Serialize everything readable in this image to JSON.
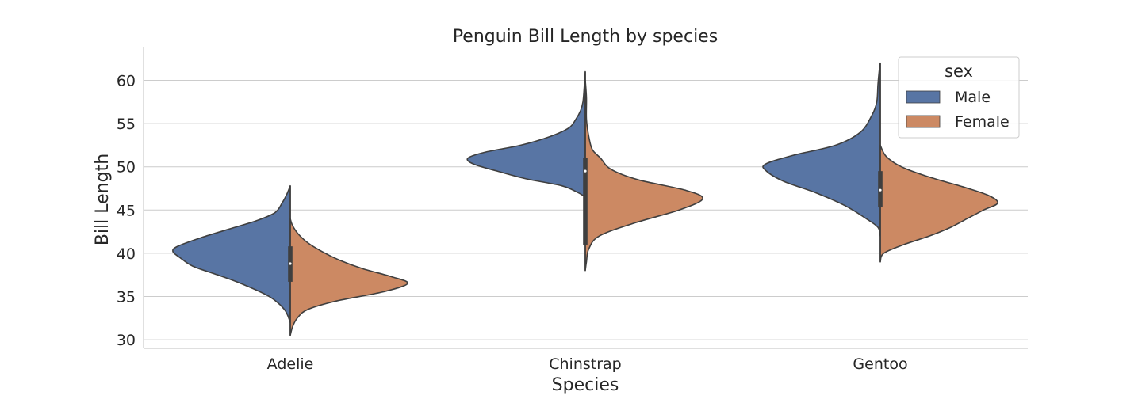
{
  "chart_data": {
    "type": "violin",
    "title": "Penguin Bill Length by species",
    "xlabel": "Species",
    "ylabel": "Bill Length",
    "categories": [
      "Adelie",
      "Chinstrap",
      "Gentoo"
    ],
    "ylim": [
      29,
      63.8
    ],
    "yticks": [
      30,
      35,
      40,
      45,
      50,
      55,
      60
    ],
    "grid": "horizontal",
    "split": true,
    "legend": {
      "title": "sex",
      "placement": "top-right"
    },
    "series": [
      {
        "name": "Male",
        "color": "#5875a4",
        "side": "left",
        "violins": [
          {
            "category": "Adelie",
            "quartiles": [
              36.7,
              38.8,
              40.8
            ],
            "median": 38.8,
            "range": [
              32.0,
              47.8
            ],
            "profile": [
              [
                32.0,
                0
              ],
              [
                33.5,
                0.05
              ],
              [
                35.0,
                0.18
              ],
              [
                36.5,
                0.42
              ],
              [
                37.5,
                0.62
              ],
              [
                38.5,
                0.83
              ],
              [
                39.5,
                0.94
              ],
              [
                40.2,
                1.0
              ],
              [
                40.8,
                0.96
              ],
              [
                41.8,
                0.76
              ],
              [
                42.8,
                0.52
              ],
              [
                43.8,
                0.28
              ],
              [
                44.7,
                0.13
              ],
              [
                45.8,
                0.07
              ],
              [
                46.8,
                0.03
              ],
              [
                47.8,
                0
              ]
            ]
          },
          {
            "category": "Chinstrap",
            "quartiles": [
              46.5,
              49.5,
              51.0
            ],
            "median": 49.5,
            "range": [
              46.5,
              61.0
            ],
            "profile": [
              [
                46.5,
                0
              ],
              [
                47.0,
                0.06
              ],
              [
                47.8,
                0.2
              ],
              [
                48.6,
                0.5
              ],
              [
                49.5,
                0.75
              ],
              [
                50.3,
                0.95
              ],
              [
                51.0,
                1.0
              ],
              [
                51.7,
                0.85
              ],
              [
                52.5,
                0.55
              ],
              [
                53.5,
                0.3
              ],
              [
                54.5,
                0.14
              ],
              [
                55.5,
                0.08
              ],
              [
                56.5,
                0.04
              ],
              [
                57.5,
                0.02
              ],
              [
                59.0,
                0.01
              ],
              [
                61.0,
                0
              ]
            ]
          },
          {
            "category": "Gentoo",
            "quartiles": [
              45.5,
              47.3,
              49.5
            ],
            "median": 47.3,
            "range": [
              42.0,
              62.0
            ],
            "profile": [
              [
                42.0,
                0
              ],
              [
                43.0,
                0.02
              ],
              [
                44.0,
                0.12
              ],
              [
                45.5,
                0.3
              ],
              [
                47.0,
                0.55
              ],
              [
                48.3,
                0.82
              ],
              [
                49.5,
                0.97
              ],
              [
                50.3,
                0.98
              ],
              [
                51.3,
                0.75
              ],
              [
                52.5,
                0.38
              ],
              [
                54.0,
                0.17
              ],
              [
                56.0,
                0.07
              ],
              [
                57.5,
                0.03
              ],
              [
                59.5,
                0.02
              ],
              [
                61.0,
                0.01
              ],
              [
                62.0,
                0
              ]
            ]
          }
        ]
      },
      {
        "name": "Female",
        "color": "#cc8963",
        "side": "right",
        "violins": [
          {
            "category": "Adelie",
            "quartiles": [
              36.8,
              38.8,
              40.8
            ],
            "median": 38.8,
            "range": [
              30.5,
              44.0
            ],
            "profile": [
              [
                30.5,
                0
              ],
              [
                31.5,
                0.02
              ],
              [
                32.5,
                0.06
              ],
              [
                33.5,
                0.15
              ],
              [
                34.5,
                0.4
              ],
              [
                35.5,
                0.78
              ],
              [
                36.5,
                1.0
              ],
              [
                37.3,
                0.86
              ],
              [
                38.2,
                0.62
              ],
              [
                39.2,
                0.42
              ],
              [
                40.2,
                0.27
              ],
              [
                41.2,
                0.15
              ],
              [
                42.2,
                0.07
              ],
              [
                43.2,
                0.02
              ],
              [
                44.0,
                0
              ]
            ]
          },
          {
            "category": "Chinstrap",
            "quartiles": [
              41.0,
              46.0,
              49.2
            ],
            "median": 46.0,
            "range": [
              38.0,
              60.0
            ],
            "profile": [
              [
                38.0,
                0
              ],
              [
                39.0,
                0.01
              ],
              [
                40.5,
                0.03
              ],
              [
                42.0,
                0.12
              ],
              [
                43.5,
                0.42
              ],
              [
                45.0,
                0.8
              ],
              [
                46.3,
                1.0
              ],
              [
                47.3,
                0.85
              ],
              [
                48.5,
                0.45
              ],
              [
                49.7,
                0.22
              ],
              [
                51.0,
                0.13
              ],
              [
                52.0,
                0.06
              ],
              [
                53.5,
                0.03
              ],
              [
                55.5,
                0.01
              ],
              [
                58.0,
                0.01
              ],
              [
                60.0,
                0
              ]
            ]
          },
          {
            "category": "Gentoo",
            "quartiles": [
              45.3,
              47.3,
              49.5
            ],
            "median": 47.3,
            "range": [
              39.0,
              52.5
            ],
            "profile": [
              [
                39.0,
                0
              ],
              [
                40.0,
                0.03
              ],
              [
                41.0,
                0.2
              ],
              [
                42.0,
                0.42
              ],
              [
                43.0,
                0.6
              ],
              [
                44.0,
                0.74
              ],
              [
                45.0,
                0.88
              ],
              [
                45.8,
                1.0
              ],
              [
                46.7,
                0.92
              ],
              [
                47.7,
                0.7
              ],
              [
                48.8,
                0.42
              ],
              [
                50.0,
                0.18
              ],
              [
                51.2,
                0.05
              ],
              [
                52.5,
                0
              ]
            ]
          }
        ]
      }
    ]
  }
}
